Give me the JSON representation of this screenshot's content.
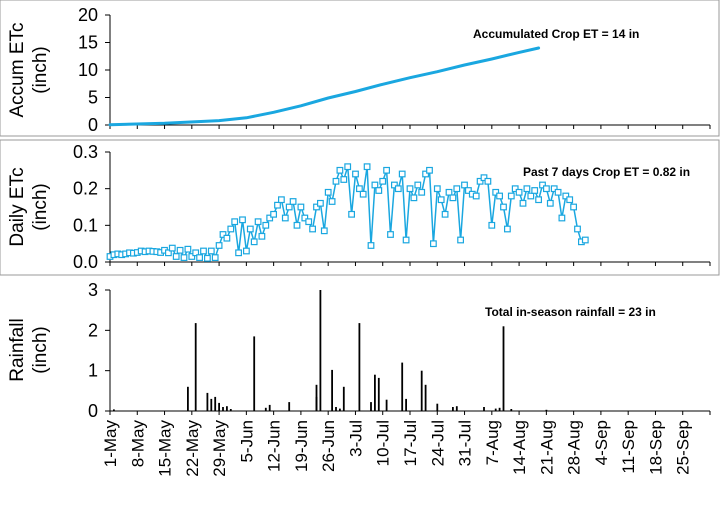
{
  "chart_data": [
    {
      "type": "line",
      "ylabel_lines": [
        "Accum ETc",
        "(inch)"
      ],
      "ylim": [
        0,
        20
      ],
      "yticks": [
        0,
        5,
        10,
        15,
        20
      ],
      "annotation": "Accumulated Crop ET = 14 in",
      "color": "#1aa7e0",
      "series": [
        {
          "x": [
            "5/1",
            "5/15",
            "5/29",
            "6/5",
            "6/12",
            "6/19",
            "6/26",
            "7/3",
            "7/10",
            "7/17",
            "7/24",
            "7/31",
            "8/7",
            "8/14",
            "8/19"
          ],
          "values": [
            0.05,
            0.3,
            0.8,
            1.3,
            2.3,
            3.5,
            4.9,
            6.1,
            7.4,
            8.6,
            9.7,
            10.9,
            12.0,
            13.2,
            14.0
          ]
        }
      ]
    },
    {
      "type": "line",
      "ylabel_lines": [
        "Daily ETc",
        "(inch)"
      ],
      "ylim": [
        0,
        0.3
      ],
      "yticks": [
        "0.0",
        "0.1",
        "0.2",
        "0.3"
      ],
      "annotation": "Past 7 days Crop ET = 0.82 in",
      "color": "#1aa7e0",
      "marker": "square",
      "series": [
        {
          "start": "5/1",
          "values": [
            0.015,
            0.02,
            0.022,
            0.02,
            0.022,
            0.025,
            0.024,
            0.026,
            0.03,
            0.028,
            0.03,
            0.029,
            0.028,
            0.026,
            0.032,
            0.025,
            0.038,
            0.015,
            0.032,
            0.012,
            0.035,
            0.015,
            0.025,
            0.012,
            0.03,
            0.01,
            0.03,
            0.012,
            0.045,
            0.075,
            0.065,
            0.09,
            0.11,
            0.025,
            0.115,
            0.03,
            0.09,
            0.055,
            0.11,
            0.07,
            0.1,
            0.12,
            0.13,
            0.155,
            0.17,
            0.12,
            0.15,
            0.165,
            0.1,
            0.15,
            0.12,
            0.11,
            0.09,
            0.15,
            0.16,
            0.085,
            0.19,
            0.165,
            0.22,
            0.25,
            0.225,
            0.26,
            0.13,
            0.24,
            0.2,
            0.185,
            0.26,
            0.045,
            0.21,
            0.195,
            0.22,
            0.25,
            0.075,
            0.21,
            0.2,
            0.24,
            0.06,
            0.2,
            0.175,
            0.21,
            0.19,
            0.24,
            0.25,
            0.05,
            0.2,
            0.17,
            0.13,
            0.19,
            0.175,
            0.2,
            0.06,
            0.21,
            0.195,
            0.185,
            0.18,
            0.22,
            0.23,
            0.22,
            0.1,
            0.19,
            0.18,
            0.15,
            0.09,
            0.18,
            0.2,
            0.19,
            0.16,
            0.2,
            0.18,
            0.195,
            0.17,
            0.21,
            0.2,
            0.16,
            0.2,
            0.19,
            0.12,
            0.18,
            0.17,
            0.15,
            0.09,
            0.055,
            0.06
          ]
        }
      ]
    },
    {
      "type": "bar",
      "ylabel_lines": [
        "Rainfall",
        "(inch)"
      ],
      "ylim": [
        0,
        3
      ],
      "yticks": [
        0,
        1,
        2,
        3
      ],
      "annotation": "Total in-season rainfall = 23 in",
      "color": "#000000",
      "x_day_offsets": [
        1,
        20,
        22,
        25,
        26,
        27,
        28,
        29,
        30,
        31,
        37,
        40,
        41,
        46,
        53,
        53,
        54,
        57,
        58,
        59,
        60,
        64,
        67,
        68,
        69,
        71,
        75,
        76,
        80,
        81,
        84,
        88,
        89,
        96,
        99,
        100,
        101,
        103,
        112
      ],
      "values": [
        0.04,
        0.6,
        2.18,
        0.45,
        0.3,
        0.35,
        0.2,
        0.1,
        0.12,
        0.05,
        1.85,
        0.08,
        0.15,
        0.22,
        0.65,
        0.35,
        3.0,
        1.02,
        0.1,
        0.06,
        0.6,
        2.18,
        0.22,
        0.9,
        0.82,
        0.28,
        1.2,
        0.3,
        1.0,
        0.65,
        0.18,
        0.1,
        0.12,
        0.1,
        0.06,
        0.08,
        2.1,
        0.05,
        0.03
      ]
    }
  ],
  "x_axis": {
    "tick_labels": [
      "1-May",
      "8-May",
      "15-May",
      "22-May",
      "29-May",
      "5-Jun",
      "12-Jun",
      "19-Jun",
      "26-Jun",
      "3-Jul",
      "10-Jul",
      "17-Jul",
      "24-Jul",
      "31-Jul",
      "7-Aug",
      "14-Aug",
      "21-Aug",
      "28-Aug",
      "4-Sep",
      "11-Sep",
      "18-Sep",
      "25-Sep"
    ]
  }
}
